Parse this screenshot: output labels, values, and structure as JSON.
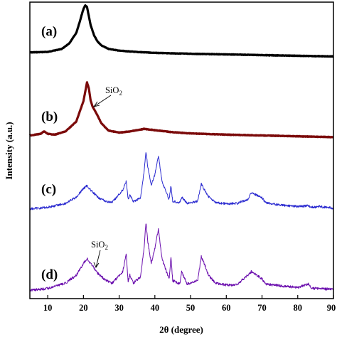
{
  "chart_data": {
    "type": "line",
    "xlabel": "2θ (degree)",
    "ylabel": "Intensity (a.u.)",
    "xlim": [
      5,
      90
    ],
    "x_ticks": [
      10,
      20,
      30,
      40,
      50,
      60,
      70,
      80,
      90
    ],
    "y_ticks_shown": false,
    "grid": false,
    "legend": "none",
    "series": [
      {
        "name": "(a)",
        "color": "#000000",
        "x": [
          5,
          10,
          14,
          16,
          18,
          19,
          20,
          20.5,
          21,
          21.5,
          22,
          23,
          24,
          25,
          27,
          30,
          35,
          40,
          50,
          60,
          70,
          80,
          90
        ],
        "y": [
          0.5,
          0.56,
          0.9,
          1.5,
          2.7,
          4.0,
          5.4,
          5.8,
          5.6,
          4.6,
          3.6,
          2.4,
          1.7,
          1.3,
          0.9,
          0.7,
          0.55,
          0.45,
          0.35,
          0.28,
          0.2,
          0.12,
          0.05
        ]
      },
      {
        "name": "(b)",
        "color": "#7b0a0a",
        "x": [
          5,
          8,
          9,
          10,
          12,
          15,
          18,
          20,
          21,
          21.5,
          22,
          22.5,
          23,
          24,
          25,
          27,
          30,
          33,
          37,
          40,
          45,
          50,
          60,
          70,
          80,
          90
        ],
        "y": [
          0.3,
          0.5,
          0.8,
          0.5,
          0.4,
          0.8,
          2.0,
          4.5,
          6.8,
          6.1,
          4.6,
          3.9,
          3.5,
          2.7,
          1.8,
          0.9,
          0.65,
          0.8,
          1.1,
          0.95,
          0.7,
          0.55,
          0.4,
          0.3,
          0.2,
          0.1
        ]
      },
      {
        "name": "(c)",
        "color": "#2b2bd0",
        "x": [
          5,
          10,
          15,
          18,
          20,
          21,
          22,
          24,
          26,
          28,
          31,
          32,
          32.5,
          33,
          34,
          36,
          37,
          37.5,
          38,
          39,
          40,
          41,
          42,
          44,
          44.5,
          45,
          47,
          47.5,
          49,
          52,
          53,
          54,
          55,
          57,
          60,
          63,
          66,
          67,
          70,
          71,
          75,
          80,
          83,
          84,
          86,
          90
        ],
        "y": [
          0.2,
          0.4,
          0.9,
          1.7,
          2.8,
          3.2,
          2.6,
          1.7,
          1.2,
          1.0,
          2.6,
          3.8,
          1.4,
          2.0,
          1.1,
          1.6,
          5.0,
          7.6,
          5.6,
          3.2,
          4.6,
          7.0,
          3.7,
          1.4,
          3.2,
          1.2,
          1.0,
          1.7,
          0.9,
          1.2,
          3.4,
          2.5,
          1.8,
          1.0,
          0.85,
          0.9,
          1.4,
          2.3,
          1.6,
          1.0,
          0.7,
          0.5,
          0.6,
          0.4,
          0.5,
          0.3
        ]
      },
      {
        "name": "(d)",
        "color": "#6a0dad",
        "x": [
          5,
          10,
          15,
          18,
          20,
          21,
          22,
          23,
          24,
          26,
          28,
          31,
          32,
          32.5,
          33,
          34,
          36,
          37,
          37.5,
          38,
          39,
          40,
          41,
          42,
          44,
          44.5,
          45,
          47,
          47.5,
          49,
          52,
          53,
          54,
          55,
          57,
          60,
          63,
          66,
          67,
          70,
          71,
          75,
          80,
          83,
          84,
          86,
          90
        ],
        "y": [
          0.3,
          0.5,
          1.1,
          2.0,
          3.3,
          3.9,
          3.3,
          2.8,
          2.2,
          1.5,
          1.1,
          2.4,
          4.4,
          1.3,
          2.0,
          1.1,
          1.8,
          5.2,
          8.0,
          5.8,
          3.3,
          5.0,
          7.2,
          3.8,
          1.5,
          4.0,
          1.4,
          1.0,
          2.4,
          1.0,
          1.4,
          4.1,
          3.1,
          2.0,
          1.1,
          0.9,
          0.9,
          2.0,
          2.4,
          1.6,
          1.0,
          0.8,
          0.6,
          1.0,
          0.5,
          0.5,
          0.4
        ]
      }
    ],
    "panel_labels": [
      "(a)",
      "(b)",
      "(c)",
      "(d)"
    ],
    "annotations": [
      {
        "panel": "(b)",
        "text_main": "SiO",
        "text_sub": "2",
        "x": 23
      },
      {
        "panel": "(d)",
        "text_main": "SiO",
        "text_sub": "2",
        "x": 23.5
      }
    ]
  }
}
